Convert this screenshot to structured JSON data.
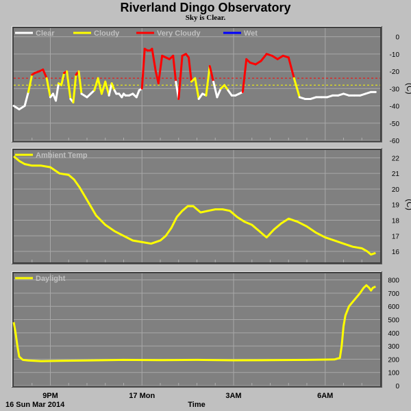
{
  "header": {
    "title": "Riverland Dingo Observatory",
    "subtitle": "Sky is Clear."
  },
  "footer": {
    "date_label": "16 Sun Mar 2014",
    "time_label": "Time"
  },
  "colors": {
    "background": "#c0c0c0",
    "plot": "#808080",
    "grid": "#a8a8a8",
    "clear": "#ffffff",
    "cloudy": "#ffff00",
    "very_cloudy": "#ff0000",
    "wet": "#0000ff",
    "legend_text": "#c0c0c0"
  },
  "chart_data": [
    {
      "type": "line",
      "panel": "sky",
      "unit": "(C)",
      "ylim": [
        -60,
        5
      ],
      "yticks": [
        0,
        -10,
        -20,
        -30,
        -40,
        -50,
        -60
      ],
      "thresholds": [
        {
          "value": -24,
          "color": "#ff0000",
          "style": "dashed"
        },
        {
          "value": -28,
          "color": "#ffff00",
          "style": "dashed"
        }
      ],
      "legend": [
        {
          "name": "Clear",
          "color": "#ffffff"
        },
        {
          "name": "Cloudy",
          "color": "#ffff00"
        },
        {
          "name": "Very Cloudy",
          "color": "#ff0000"
        },
        {
          "name": "Wet",
          "color": "#0000ff"
        }
      ],
      "x_hours": [
        0,
        0.3,
        0.6,
        0.8,
        1.0,
        1.15,
        1.4,
        1.6,
        1.8,
        2.0,
        2.15,
        2.3,
        2.45,
        2.6,
        2.75,
        2.9,
        3.1,
        3.25,
        3.4,
        3.55,
        3.7,
        3.85,
        4.0,
        4.2,
        4.4,
        4.6,
        4.8,
        5.0,
        5.2,
        5.35,
        5.5,
        5.6,
        5.75,
        5.9,
        6.0,
        6.1,
        6.3,
        6.5,
        6.7,
        6.85,
        7.0,
        7.15,
        7.3,
        7.45,
        7.55,
        7.75,
        7.9,
        8.1,
        8.3,
        8.5,
        8.7,
        8.85,
        9.0,
        9.2,
        9.4,
        9.55,
        9.7,
        9.9,
        10.1,
        10.3,
        10.5,
        10.7,
        10.9,
        11.1,
        11.3,
        11.5,
        11.7,
        11.9,
        12.1,
        12.3,
        12.5,
        12.7,
        12.9,
        13.2,
        13.5,
        13.8,
        14.1,
        14.4,
        14.7,
        15.0,
        15.3,
        15.6,
        15.9,
        16.2,
        16.5,
        16.8,
        17.1,
        17.4,
        17.7,
        18.0,
        18.3,
        18.6,
        18.9,
        19.2,
        19.5,
        19.75
      ],
      "series": [
        {
          "values": [
            -40,
            -42,
            -40,
            -32,
            -22,
            -21,
            -20,
            -19,
            -24,
            -35,
            -33,
            -37,
            -27,
            -28,
            -21,
            -20,
            -36,
            -38,
            -22,
            -20,
            -33,
            -34,
            -35,
            -33,
            -31,
            -24,
            -33,
            -26,
            -34,
            -27,
            -31,
            -33,
            -33,
            -35,
            -33,
            -34,
            -34,
            -33,
            -35,
            -31,
            -30,
            -7,
            -8,
            -8,
            -7,
            -20,
            -27,
            -11,
            -12,
            -13,
            -11,
            -26,
            -36,
            -11,
            -10,
            -12,
            -26,
            -24,
            -36,
            -33,
            -34,
            -17,
            -26,
            -35,
            -30,
            -28,
            -31,
            -34,
            -34,
            -33,
            -32,
            -13,
            -15,
            -16,
            -14,
            -10,
            -11,
            -13,
            -11,
            -12,
            -24,
            -35,
            -36,
            -36,
            -35,
            -35,
            -35,
            -34,
            -34,
            -33,
            -34,
            -34,
            -34,
            -33,
            -32,
            -32
          ]
        }
      ]
    },
    {
      "type": "line",
      "panel": "ambient",
      "unit": "(C)",
      "ylim": [
        15.3,
        22.5
      ],
      "yticks": [
        22,
        21,
        20,
        19,
        18,
        17,
        16
      ],
      "legend": [
        {
          "name": "Ambient Temp",
          "color": "#ffff00"
        }
      ],
      "x_hours": [
        0,
        0.3,
        0.6,
        1.0,
        1.5,
        2.0,
        2.5,
        3.0,
        3.3,
        3.6,
        4.0,
        4.5,
        5.0,
        5.5,
        6.0,
        6.5,
        7.0,
        7.5,
        8.0,
        8.3,
        8.6,
        8.9,
        9.2,
        9.5,
        9.8,
        10.2,
        10.6,
        11.0,
        11.4,
        11.8,
        12.2,
        12.6,
        13.0,
        13.4,
        13.8,
        14.2,
        14.6,
        15.0,
        15.5,
        16.0,
        16.5,
        17.0,
        17.5,
        18.0,
        18.5,
        19.0,
        19.3,
        19.5,
        19.75
      ],
      "series": [
        {
          "values": [
            22.1,
            21.8,
            21.6,
            21.5,
            21.5,
            21.4,
            21.0,
            20.9,
            20.6,
            20.1,
            19.3,
            18.3,
            17.7,
            17.3,
            17.0,
            16.7,
            16.6,
            16.5,
            16.7,
            17.0,
            17.5,
            18.2,
            18.6,
            18.9,
            18.9,
            18.5,
            18.6,
            18.7,
            18.7,
            18.6,
            18.2,
            17.9,
            17.7,
            17.3,
            16.9,
            17.4,
            17.8,
            18.1,
            17.9,
            17.6,
            17.2,
            16.9,
            16.7,
            16.5,
            16.3,
            16.2,
            16.0,
            15.8,
            15.9
          ]
        }
      ]
    },
    {
      "type": "line",
      "panel": "daylight",
      "unit": "",
      "ylim": [
        0,
        850
      ],
      "yticks": [
        800,
        700,
        600,
        500,
        400,
        300,
        200,
        100,
        0
      ],
      "legend": [
        {
          "name": "Daylight",
          "color": "#ffff00"
        }
      ],
      "x_hours": [
        0,
        0.1,
        0.2,
        0.3,
        0.5,
        0.8,
        1.5,
        2.5,
        4.0,
        6.0,
        8.0,
        10.0,
        12.0,
        14.0,
        16.0,
        17.5,
        17.8,
        17.9,
        18.0,
        18.1,
        18.3,
        18.6,
        18.9,
        19.1,
        19.25,
        19.4,
        19.5,
        19.6,
        19.75
      ],
      "series": [
        {
          "values": [
            480,
            400,
            300,
            220,
            195,
            190,
            185,
            188,
            190,
            195,
            193,
            195,
            192,
            193,
            195,
            198,
            210,
            300,
            450,
            530,
            600,
            650,
            700,
            740,
            760,
            740,
            720,
            740,
            750
          ]
        }
      ]
    }
  ],
  "x_axis": {
    "start_hour_label": "16 Sun Mar 2014",
    "ticks": [
      {
        "hour": 2,
        "label": "9PM"
      },
      {
        "hour": 7,
        "label": "17 Mon"
      },
      {
        "hour": 12,
        "label": "3AM"
      },
      {
        "hour": 17,
        "label": "6AM"
      }
    ],
    "minor_ticks": [
      1,
      3,
      4,
      5,
      6,
      8,
      9,
      10,
      11,
      13,
      14,
      15,
      16,
      18,
      19
    ],
    "range": [
      0,
      20
    ]
  }
}
